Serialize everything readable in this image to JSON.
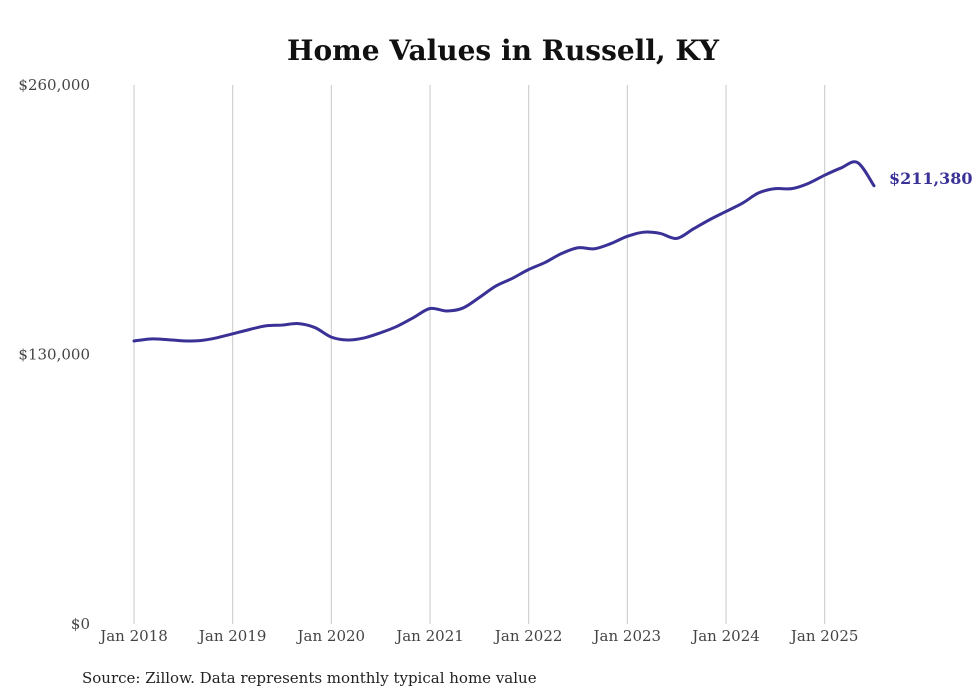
{
  "chart_data": {
    "type": "line",
    "title": "Home Values in Russell, KY",
    "source": "Source: Zillow. Data represents monthly typical home value",
    "ylim": [
      0,
      260000
    ],
    "y_ticks": [
      {
        "value": 0,
        "label": "$0"
      },
      {
        "value": 130000,
        "label": "$130,000"
      },
      {
        "value": 260000,
        "label": "$260,000"
      }
    ],
    "x_ticks": [
      {
        "value": "2018-01",
        "label": "Jan 2018"
      },
      {
        "value": "2019-01",
        "label": "Jan 2019"
      },
      {
        "value": "2020-01",
        "label": "Jan 2020"
      },
      {
        "value": "2021-01",
        "label": "Jan 2021"
      },
      {
        "value": "2022-01",
        "label": "Jan 2022"
      },
      {
        "value": "2023-01",
        "label": "Jan 2023"
      },
      {
        "value": "2024-01",
        "label": "Jan 2024"
      },
      {
        "value": "2025-01",
        "label": "Jan 2025"
      }
    ],
    "xlim": [
      "2018-01",
      "2025-07"
    ],
    "grid": "vertical",
    "legend": "none",
    "end_label": "$211,380",
    "color": "#3a3196",
    "series": [
      {
        "x": [
          "2018-01",
          "2018-03",
          "2018-05",
          "2018-07",
          "2018-09",
          "2018-11",
          "2019-01",
          "2019-03",
          "2019-05",
          "2019-07",
          "2019-09",
          "2019-11",
          "2020-01",
          "2020-03",
          "2020-05",
          "2020-07",
          "2020-09",
          "2020-11",
          "2021-01",
          "2021-03",
          "2021-05",
          "2021-07",
          "2021-09",
          "2021-11",
          "2022-01",
          "2022-03",
          "2022-05",
          "2022-07",
          "2022-09",
          "2022-11",
          "2023-01",
          "2023-03",
          "2023-05",
          "2023-07",
          "2023-09",
          "2023-11",
          "2024-01",
          "2024-03",
          "2024-05",
          "2024-07",
          "2024-09",
          "2024-11",
          "2025-01",
          "2025-03",
          "2025-05",
          "2025-07"
        ],
        "values": [
          136500,
          137500,
          137200,
          136600,
          136700,
          138000,
          140000,
          142000,
          143800,
          144200,
          144900,
          143000,
          138400,
          137000,
          138000,
          140500,
          143600,
          147800,
          152200,
          151000,
          152400,
          157500,
          163000,
          166700,
          171000,
          174400,
          178700,
          181500,
          181000,
          183500,
          187000,
          189000,
          188400,
          186000,
          190500,
          195000,
          199000,
          203000,
          208000,
          210000,
          210000,
          212500,
          216500,
          220000,
          222600,
          211380
        ]
      }
    ]
  }
}
